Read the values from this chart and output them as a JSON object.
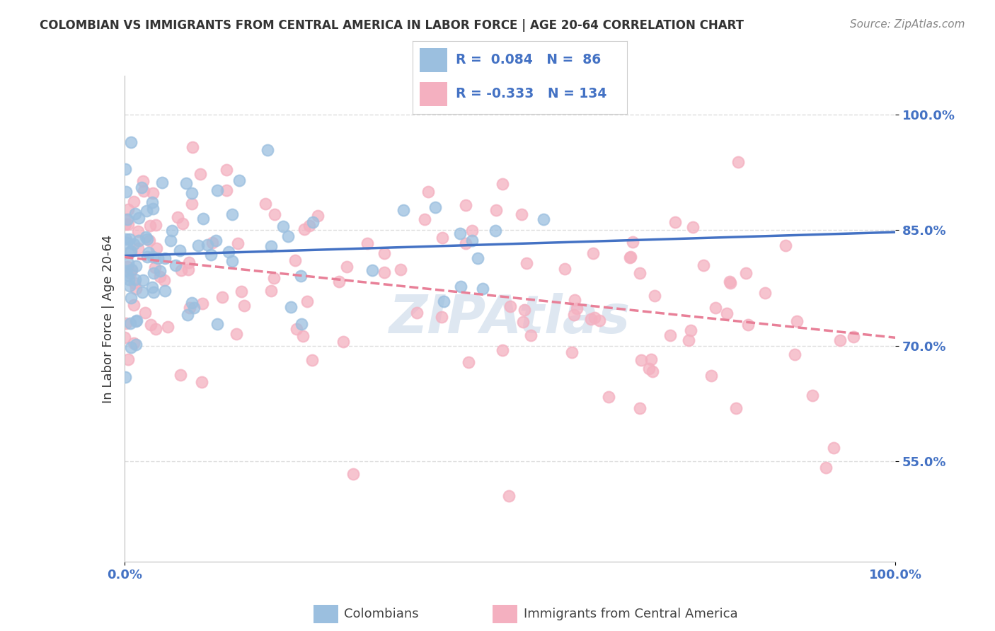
{
  "title": "COLOMBIAN VS IMMIGRANTS FROM CENTRAL AMERICA IN LABOR FORCE | AGE 20-64 CORRELATION CHART",
  "source": "Source: ZipAtlas.com",
  "ylabel": "In Labor Force | Age 20-64",
  "xlim": [
    0.0,
    1.0
  ],
  "ylim": [
    0.42,
    1.05
  ],
  "yticks": [
    0.55,
    0.7,
    0.85,
    1.0
  ],
  "ytick_labels": [
    "55.0%",
    "70.0%",
    "85.0%",
    "100.0%"
  ],
  "xticks": [
    0.0,
    1.0
  ],
  "xtick_labels": [
    "0.0%",
    "100.0%"
  ],
  "series_blue": {
    "R": 0.084,
    "N": 86,
    "color": "#9bbfdf",
    "line_color": "#4472c4",
    "seed": 42
  },
  "series_pink": {
    "R": -0.333,
    "N": 134,
    "color": "#f4b0c0",
    "line_color": "#e88098",
    "seed": 99
  },
  "watermark": "ZIPAtlas",
  "watermark_color": "#c8d8e8",
  "background_color": "#ffffff",
  "grid_color": "#dddddd",
  "title_color": "#333333",
  "axis_label_color": "#333333",
  "tick_color": "#4472c4",
  "legend_r_color": "#4472c4"
}
